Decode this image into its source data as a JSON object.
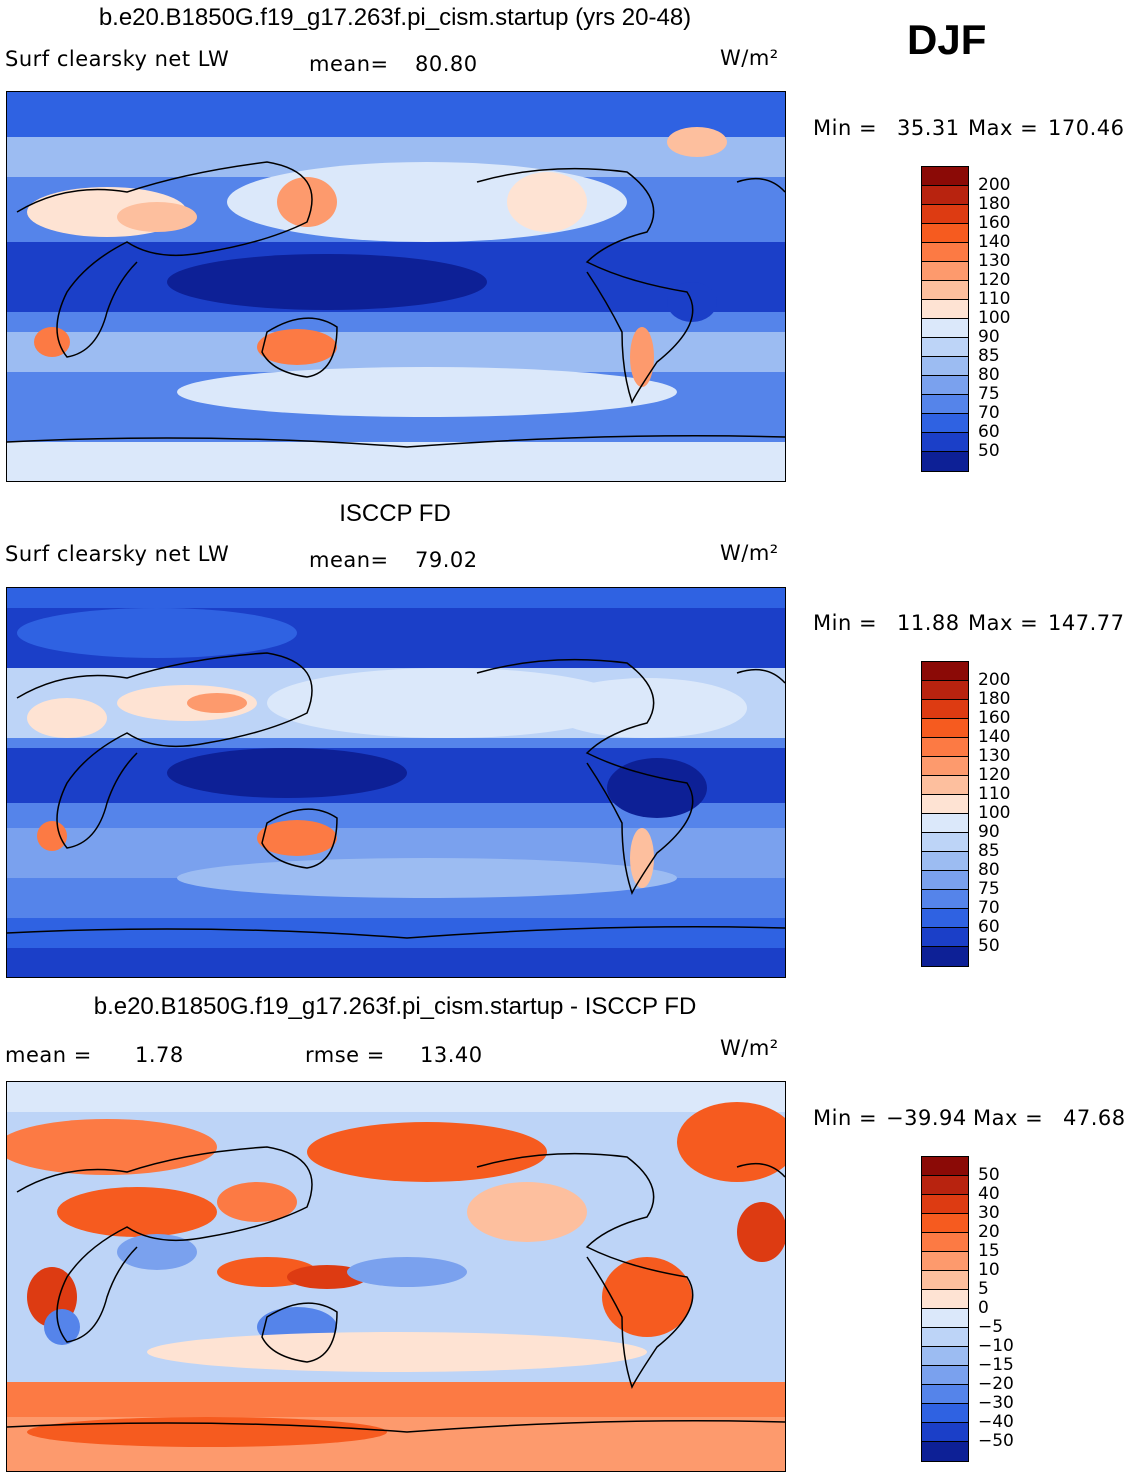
{
  "season": "DJF",
  "panels": [
    {
      "title": "b.e20.B1850G.f19_g17.263f.pi_cism.startup (yrs 20-48)",
      "variable": "Surf clearsky net LW",
      "stat1_label": "mean=",
      "stat1_value": "80.80",
      "stat2_label": "",
      "stat2_value": "",
      "units": "W/m²",
      "min_label": "Min =",
      "min_value": "35.31",
      "max_label": "Max =",
      "max_value": "170.46",
      "colorbar_labels": [
        "200",
        "180",
        "160",
        "140",
        "130",
        "120",
        "110",
        "100",
        "90",
        "85",
        "80",
        "75",
        "70",
        "60",
        "50"
      ],
      "colorbar_colors": [
        "#8b0a06",
        "#b8230f",
        "#dd3b12",
        "#f65b1f",
        "#fc7a44",
        "#fd9a6d",
        "#fdbf9e",
        "#fee3d3",
        "#dbe8fa",
        "#bdd4f7",
        "#9cbcf2",
        "#7aa1ee",
        "#5584ea",
        "#2f62e2",
        "#1b3fc8",
        "#0d2096"
      ]
    },
    {
      "title": "ISCCP FD",
      "variable": "Surf clearsky net LW",
      "stat1_label": "mean=",
      "stat1_value": "79.02",
      "stat2_label": "",
      "stat2_value": "",
      "units": "W/m²",
      "min_label": "Min =",
      "min_value": "11.88",
      "max_label": "Max =",
      "max_value": "147.77",
      "colorbar_labels": [
        "200",
        "180",
        "160",
        "140",
        "130",
        "120",
        "110",
        "100",
        "90",
        "85",
        "80",
        "75",
        "70",
        "60",
        "50"
      ],
      "colorbar_colors": [
        "#8b0a06",
        "#b8230f",
        "#dd3b12",
        "#f65b1f",
        "#fc7a44",
        "#fd9a6d",
        "#fdbf9e",
        "#fee3d3",
        "#dbe8fa",
        "#bdd4f7",
        "#9cbcf2",
        "#7aa1ee",
        "#5584ea",
        "#2f62e2",
        "#1b3fc8",
        "#0d2096"
      ]
    },
    {
      "title": "b.e20.B1850G.f19_g17.263f.pi_cism.startup - ISCCP FD",
      "variable": "",
      "stat1_label": "mean =",
      "stat1_value": "1.78",
      "stat2_label": "rmse =",
      "stat2_value": "13.40",
      "units": "W/m²",
      "min_label": "Min =",
      "min_value": "−39.94",
      "max_label": "Max =",
      "max_value": "47.68",
      "colorbar_labels": [
        "50",
        "40",
        "30",
        "20",
        "15",
        "10",
        "5",
        "0",
        "−5",
        "−10",
        "−15",
        "−20",
        "−30",
        "−40",
        "−50"
      ],
      "colorbar_colors": [
        "#8b0a06",
        "#b8230f",
        "#dd3b12",
        "#f65b1f",
        "#fc7a44",
        "#fd9a6d",
        "#fdbf9e",
        "#fee3d3",
        "#dbe8fa",
        "#bdd4f7",
        "#9cbcf2",
        "#7aa1ee",
        "#5584ea",
        "#2f62e2",
        "#1b3fc8",
        "#0d2096"
      ]
    }
  ]
}
